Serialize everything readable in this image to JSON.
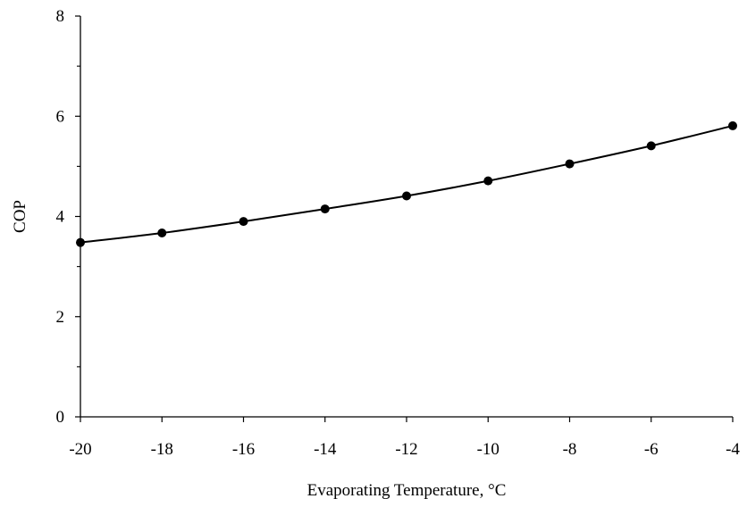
{
  "chart_data": {
    "type": "line",
    "title": "",
    "xlabel": "Evaporating Temperature, °C",
    "ylabel": "COP",
    "xlim": [
      -20,
      -4
    ],
    "ylim": [
      0,
      8
    ],
    "x_ticks": [
      "-20",
      "-18",
      "-16",
      "-14",
      "-12",
      "-10",
      "-8",
      "-6",
      "-4"
    ],
    "y_ticks": [
      "0",
      "2",
      "4",
      "6",
      "8"
    ],
    "grid": false,
    "legend": "none",
    "series": [
      {
        "x": [
          -20,
          -18,
          -16,
          -14,
          -12,
          -10,
          -8,
          -6,
          -4
        ],
        "y": [
          3.48,
          3.67,
          3.9,
          4.15,
          4.41,
          4.71,
          5.05,
          5.41,
          5.81
        ],
        "marker": "circle",
        "color": "#000000"
      }
    ]
  }
}
